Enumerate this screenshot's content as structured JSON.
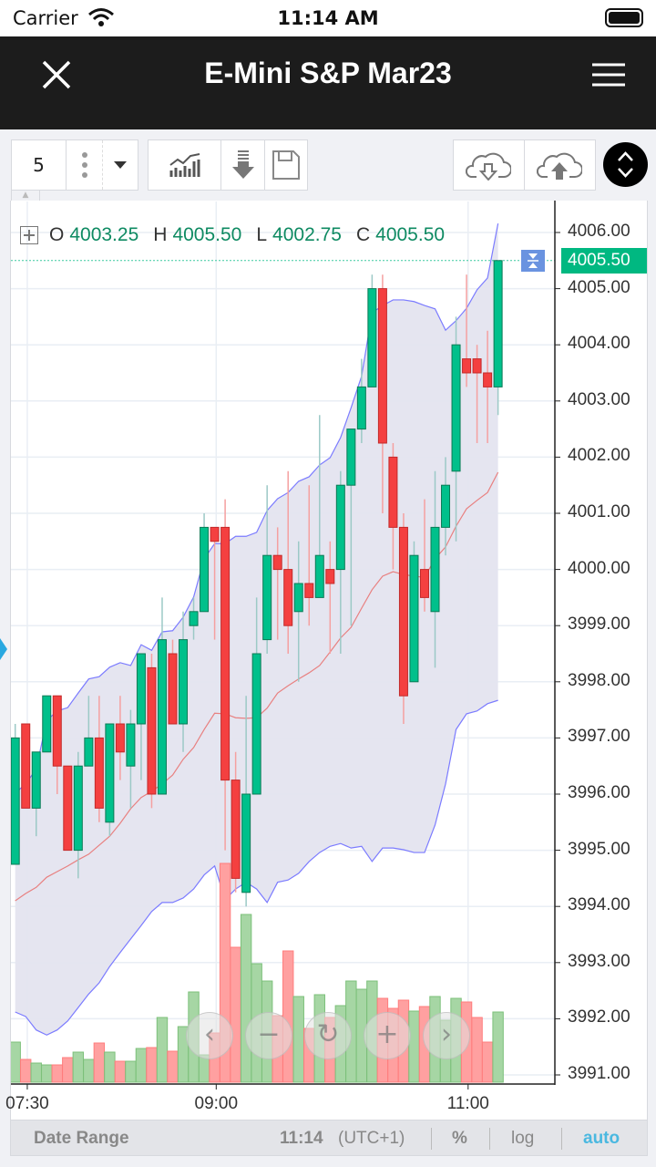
{
  "status_bar": {
    "carrier": "Carrier",
    "time": "11:14 AM"
  },
  "header": {
    "title": "E-Mini S&P Mar23"
  },
  "toolbar": {
    "interval": "5",
    "icons": [
      "more-vertical-icon",
      "dropdown-icon",
      "studies-icon",
      "download-arrow-icon",
      "save-icon",
      "cloud-download-icon",
      "cloud-upload-icon",
      "collapse-icon"
    ]
  },
  "ohlc": {
    "o_label": "O",
    "o": "4003.25",
    "h_label": "H",
    "h": "4005.50",
    "l_label": "L",
    "l": "4002.75",
    "c_label": "C",
    "c": "4005.50"
  },
  "current_price": "4005.50",
  "bottom_bar": {
    "date_range": "Date Range",
    "clock": "11:14",
    "timezone": "(UTC+1)",
    "percent": "%",
    "log": "log",
    "auto": "auto"
  },
  "nav_buttons": [
    "‹",
    "−",
    "↻",
    "+",
    "›"
  ],
  "colors": {
    "up": "#00c08b",
    "down": "#f44040",
    "band": "#7b7bff",
    "mid": "#e88080",
    "accent": "#4ab8e0"
  },
  "chart_data": {
    "type": "candlestick",
    "symbol": "E-Mini S&P Mar23",
    "interval_minutes": 5,
    "ylim": [
      3991,
      4006
    ],
    "y_ticks": [
      "4006.00",
      "4005.00",
      "4004.00",
      "4003.00",
      "4002.00",
      "4001.00",
      "4000.00",
      "3999.00",
      "3998.00",
      "3997.00",
      "3996.00",
      "3995.00",
      "3994.00",
      "3993.00",
      "3992.00",
      "3991.00"
    ],
    "x_ticks": [
      {
        "label": "07:30",
        "index": 1.15
      },
      {
        "label": "09:00",
        "index": 19.15
      },
      {
        "label": "11:00",
        "index": 43.15
      }
    ],
    "ohlc": [
      [
        3994.75,
        3997.25,
        3994.75,
        3997.0
      ],
      [
        3997.25,
        3997.25,
        3995.75,
        3995.75
      ],
      [
        3995.75,
        3996.75,
        3995.25,
        3996.75
      ],
      [
        3996.75,
        3997.75,
        3996.75,
        3997.75
      ],
      [
        3997.75,
        3997.75,
        3996.0,
        3996.5
      ],
      [
        3996.5,
        3996.5,
        3995.0,
        3995.0
      ],
      [
        3995.0,
        3996.75,
        3994.5,
        3996.5
      ],
      [
        3996.5,
        3997.75,
        3996.5,
        3997.0
      ],
      [
        3997.0,
        3997.75,
        3995.5,
        3995.75
      ],
      [
        3995.5,
        3997.25,
        3995.25,
        3997.25
      ],
      [
        3997.25,
        3997.75,
        3996.25,
        3996.75
      ],
      [
        3996.5,
        3997.5,
        3995.75,
        3997.25
      ],
      [
        3997.25,
        3998.5,
        3996.25,
        3998.5
      ],
      [
        3998.25,
        3998.5,
        3995.75,
        3996.0
      ],
      [
        3996.0,
        3999.5,
        3996.0,
        3998.75
      ],
      [
        3998.5,
        3998.75,
        3997.25,
        3997.25
      ],
      [
        3997.25,
        3999.25,
        3996.75,
        3998.75
      ],
      [
        3999.0,
        3999.5,
        3998.75,
        3999.25
      ],
      [
        3999.25,
        4001.0,
        3999.25,
        4000.75
      ],
      [
        4000.75,
        4000.75,
        3998.75,
        4000.5
      ],
      [
        4000.75,
        4001.25,
        3995.0,
        3996.25
      ],
      [
        3996.25,
        3996.75,
        3994.25,
        3994.5
      ],
      [
        3994.25,
        3997.75,
        3994.0,
        3996.0
      ],
      [
        3996.0,
        3999.5,
        3996.0,
        3998.5
      ],
      [
        3998.75,
        4001.5,
        3998.5,
        4000.25
      ],
      [
        4000.25,
        4000.75,
        3998.75,
        4000.0
      ],
      [
        4000.0,
        4001.75,
        3998.5,
        3999.0
      ],
      [
        3999.25,
        4000.5,
        3998.0,
        3999.75
      ],
      [
        3999.75,
        4001.5,
        3999.0,
        3999.5
      ],
      [
        3999.5,
        4002.75,
        3999.5,
        4000.25
      ],
      [
        4000.0,
        4000.5,
        3998.5,
        3999.75
      ],
      [
        4000.0,
        4001.75,
        3998.5,
        4001.5
      ],
      [
        4001.5,
        4002.5,
        3999.0,
        4002.5
      ],
      [
        4002.5,
        4003.75,
        4002.25,
        4003.25
      ],
      [
        4003.25,
        4005.25,
        4003.25,
        4005.0
      ],
      [
        4005.0,
        4005.25,
        4001.0,
        4002.25
      ],
      [
        4002.0,
        4002.25,
        4000.0,
        4000.75
      ],
      [
        4000.75,
        4001.0,
        3997.25,
        3997.75
      ],
      [
        3998.0,
        4000.5,
        3998.0,
        4000.25
      ],
      [
        4000.0,
        4001.25,
        3999.25,
        3999.5
      ],
      [
        3999.25,
        4001.75,
        3998.25,
        4000.75
      ],
      [
        4000.75,
        4002.0,
        4000.25,
        4001.5
      ],
      [
        4001.75,
        4004.5,
        4000.5,
        4004.0
      ],
      [
        4003.75,
        4005.25,
        4003.25,
        4003.5
      ],
      [
        4003.75,
        4004.0,
        4002.25,
        4003.5
      ],
      [
        4003.5,
        4004.25,
        4002.25,
        4003.25
      ],
      [
        4003.25,
        4005.5,
        4002.75,
        4005.5
      ]
    ],
    "volume": [
      44,
      25,
      21,
      19,
      19,
      27,
      33,
      25,
      43,
      33,
      23,
      23,
      37,
      38,
      71,
      34,
      61,
      99,
      30,
      54,
      240,
      148,
      184,
      130,
      111,
      73,
      144,
      94,
      59,
      96,
      71,
      84,
      111,
      102,
      111,
      92,
      81,
      90,
      78,
      83,
      94,
      68,
      92,
      88,
      71,
      44,
      77
    ],
    "bollinger_upper": [
      3996.02,
      3996.18,
      3996.45,
      3997.31,
      3997.48,
      3997.54,
      3997.8,
      3998.05,
      3998.09,
      3998.26,
      3998.34,
      3998.29,
      3998.66,
      3998.56,
      3998.89,
      3998.91,
      3999.15,
      3999.51,
      4000.19,
      4000.46,
      4000.46,
      4000.59,
      4000.59,
      4000.66,
      4001.05,
      4001.26,
      4001.37,
      4001.57,
      4001.65,
      4001.86,
      4001.99,
      4002.35,
      4002.88,
      4003.44,
      4004.57,
      4004.7,
      4004.8,
      4004.8,
      4004.77,
      4004.7,
      4004.64,
      4004.26,
      4004.43,
      4004.65,
      4004.98,
      4005.19,
      4006.16
    ],
    "bollinger_middle": [
      3994.1,
      3994.23,
      3994.34,
      3994.52,
      3994.62,
      3994.72,
      3994.83,
      3994.93,
      3995.09,
      3995.25,
      3995.48,
      3995.74,
      3995.94,
      3996.05,
      3996.18,
      3996.34,
      3996.62,
      3996.83,
      3997.15,
      3997.44,
      3997.43,
      3997.36,
      3997.35,
      3997.36,
      3997.53,
      3997.8,
      3997.93,
      3998.05,
      3998.16,
      3998.29,
      3998.53,
      3998.78,
      3998.97,
      3999.31,
      3999.64,
      3999.88,
      3999.96,
      3999.91,
      3999.88,
      3999.86,
      4000.19,
      4000.4,
      4000.77,
      4001.08,
      4001.23,
      4001.37,
      4001.73
    ],
    "bollinger_lower": [
      3992.12,
      3992.04,
      3991.8,
      3991.71,
      3991.8,
      3991.96,
      3992.2,
      3992.44,
      3992.64,
      3992.93,
      3993.18,
      3993.42,
      3993.66,
      3993.91,
      3994.07,
      3994.07,
      3994.15,
      3994.31,
      3994.56,
      3994.72,
      3994.12,
      3994.31,
      3994.43,
      3994.31,
      3994.07,
      3994.43,
      3994.47,
      3994.59,
      3994.8,
      3994.96,
      3995.07,
      3995.12,
      3995.04,
      3995.07,
      3994.8,
      3995.04,
      3995.04,
      3995.01,
      3994.96,
      3994.96,
      3995.45,
      3996.18,
      3997.15,
      3997.43,
      3997.48,
      3997.61,
      3997.67
    ]
  }
}
